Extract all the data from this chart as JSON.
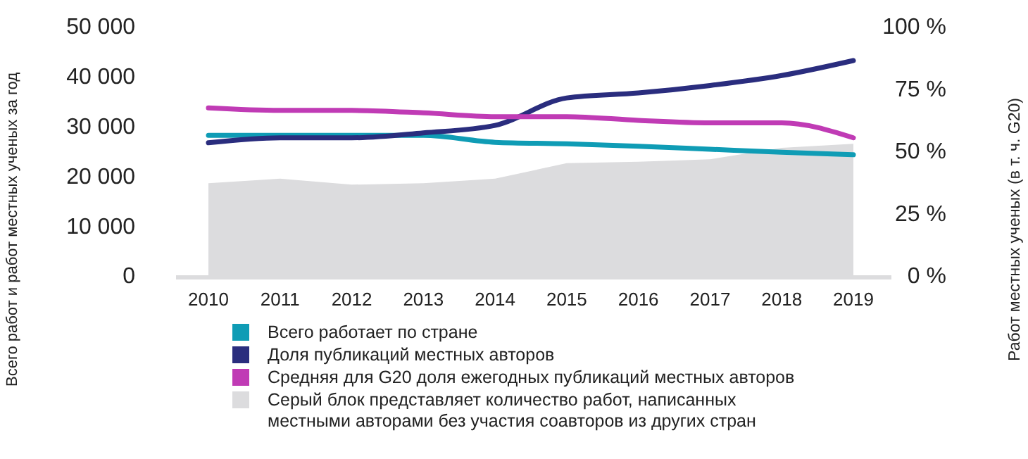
{
  "chart_data": {
    "type": "line",
    "ylabel": "Всего работ и работ местных ученых за год",
    "y2label": "Работ местных ученых (в т. ч. G20)",
    "categories": [
      "2010",
      "2011",
      "2012",
      "2013",
      "2014",
      "2015",
      "2016",
      "2017",
      "2018",
      "2019"
    ],
    "ylim": [
      0,
      50000
    ],
    "yticks": [
      {
        "value": 0,
        "label": "0"
      },
      {
        "value": 10000,
        "label": "10 000"
      },
      {
        "value": 20000,
        "label": "20 000"
      },
      {
        "value": 30000,
        "label": "30 000"
      },
      {
        "value": 40000,
        "label": "40 000"
      },
      {
        "value": 50000,
        "label": "50 000"
      }
    ],
    "y2lim": [
      0,
      100
    ],
    "y2ticks": [
      {
        "value": 0,
        "label": "0 %"
      },
      {
        "value": 25,
        "label": "25 %"
      },
      {
        "value": 50,
        "label": "50 %"
      },
      {
        "value": 75,
        "label": "75 %"
      },
      {
        "value": 100,
        "label": "100 %"
      }
    ],
    "series": [
      {
        "type": "area",
        "name": "Серый блок представляет количество работ, написанных местными авторами без участия соавторов из других стран",
        "color": "#dcdcde",
        "values": [
          18900,
          19800,
          18600,
          18900,
          19800,
          22900,
          23200,
          23700,
          26000,
          26800
        ]
      },
      {
        "name": "Всего работает по стране",
        "color": "#0f9cb5",
        "values": [
          28500,
          28500,
          28500,
          28500,
          27100,
          26800,
          26300,
          25700,
          25100,
          24600
        ]
      },
      {
        "axis": "y2",
        "name": "Доля публикаций местных авторов",
        "color": "#2a2d7e",
        "values": [
          54,
          56,
          56,
          58,
          61,
          72,
          74,
          77,
          81,
          87
        ]
      },
      {
        "axis": "y2",
        "name": "Средняя для G20 доля ежегодных публикаций местных авторов",
        "color": "#c03bb5",
        "values": [
          68,
          67,
          67,
          66,
          64.5,
          64.5,
          63,
          62,
          62,
          56
        ]
      }
    ],
    "legend": "bottom left",
    "grid": false
  }
}
